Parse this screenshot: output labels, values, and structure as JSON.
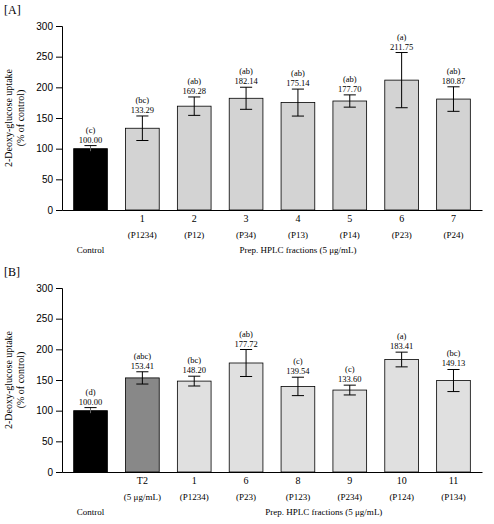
{
  "chart_data": [
    {
      "type": "bar",
      "title": "[A]",
      "ylabel": "2-Deoxy-glucose uptake\n(% of control)",
      "categories": [
        null,
        "1",
        "2",
        "3",
        "4",
        "5",
        "6",
        "7"
      ],
      "sublabels": [
        null,
        "(P1234)",
        "(P12)",
        "(P34)",
        "(P13)",
        "(P14)",
        "(P23)",
        "(P24)"
      ],
      "groups": [
        {
          "label": "Control",
          "from": 0,
          "to": 0
        },
        {
          "label": "Prep. HPLC fractions (5 μg/mL)",
          "from": 1,
          "to": 7
        }
      ],
      "values": [
        100.0,
        133.29,
        169.28,
        182.14,
        175.14,
        177.7,
        211.75,
        180.87
      ],
      "errors": [
        5,
        20,
        15,
        18,
        22,
        10,
        45,
        20
      ],
      "colors": [
        "#000000",
        "#d3d3d3",
        "#d3d3d3",
        "#d3d3d3",
        "#d3d3d3",
        "#d3d3d3",
        "#d3d3d3",
        "#d3d3d3"
      ],
      "data_labels": true,
      "value_labels": [
        "100.00",
        "133.29",
        "169.28",
        "182.14",
        "175.14",
        "177.70",
        "211.75",
        "180.87"
      ],
      "sig_labels": [
        "(c)",
        "(bc)",
        "(ab)",
        "(ab)",
        "(ab)",
        "(ab)",
        "(a)",
        "(ab)"
      ],
      "ylim": [
        0,
        300
      ],
      "yticks": [
        0,
        50,
        100,
        150,
        200,
        250,
        300
      ],
      "grid": false
    },
    {
      "type": "bar",
      "title": "[B]",
      "ylabel": "2-Deoxy-glucose uptake\n(% of control)",
      "categories": [
        null,
        "T2",
        "1",
        "6",
        "8",
        "9",
        "10",
        "11"
      ],
      "sublabels": [
        null,
        "(5 μg/mL)",
        "(P1234)",
        "(P23)",
        "(P123)",
        "(P234)",
        "(P124)",
        "(P134)"
      ],
      "groups": [
        {
          "label": "Control",
          "from": 0,
          "to": 0
        },
        {
          "label": "Prep. HPLC fractions (5 μg/mL)",
          "from": 2,
          "to": 7
        }
      ],
      "values": [
        100.0,
        153.41,
        148.2,
        177.72,
        139.54,
        133.6,
        183.41,
        149.13
      ],
      "errors": [
        5,
        10,
        8,
        22,
        15,
        8,
        12,
        18
      ],
      "colors": [
        "#000000",
        "#888888",
        "#e0e0e0",
        "#e0e0e0",
        "#e0e0e0",
        "#e0e0e0",
        "#e0e0e0",
        "#e0e0e0"
      ],
      "data_labels": true,
      "value_labels": [
        "100.00",
        "153.41",
        "148.20",
        "177.72",
        "139.54",
        "133.60",
        "183.41",
        "149.13"
      ],
      "sig_labels": [
        "(d)",
        "(abc)",
        "(bc)",
        "(ab)",
        "(c)",
        "(c)",
        "(a)",
        "(bc)"
      ],
      "ylim": [
        0,
        300
      ],
      "yticks": [
        0,
        50,
        100,
        150,
        200,
        250,
        300
      ],
      "grid": false
    }
  ]
}
